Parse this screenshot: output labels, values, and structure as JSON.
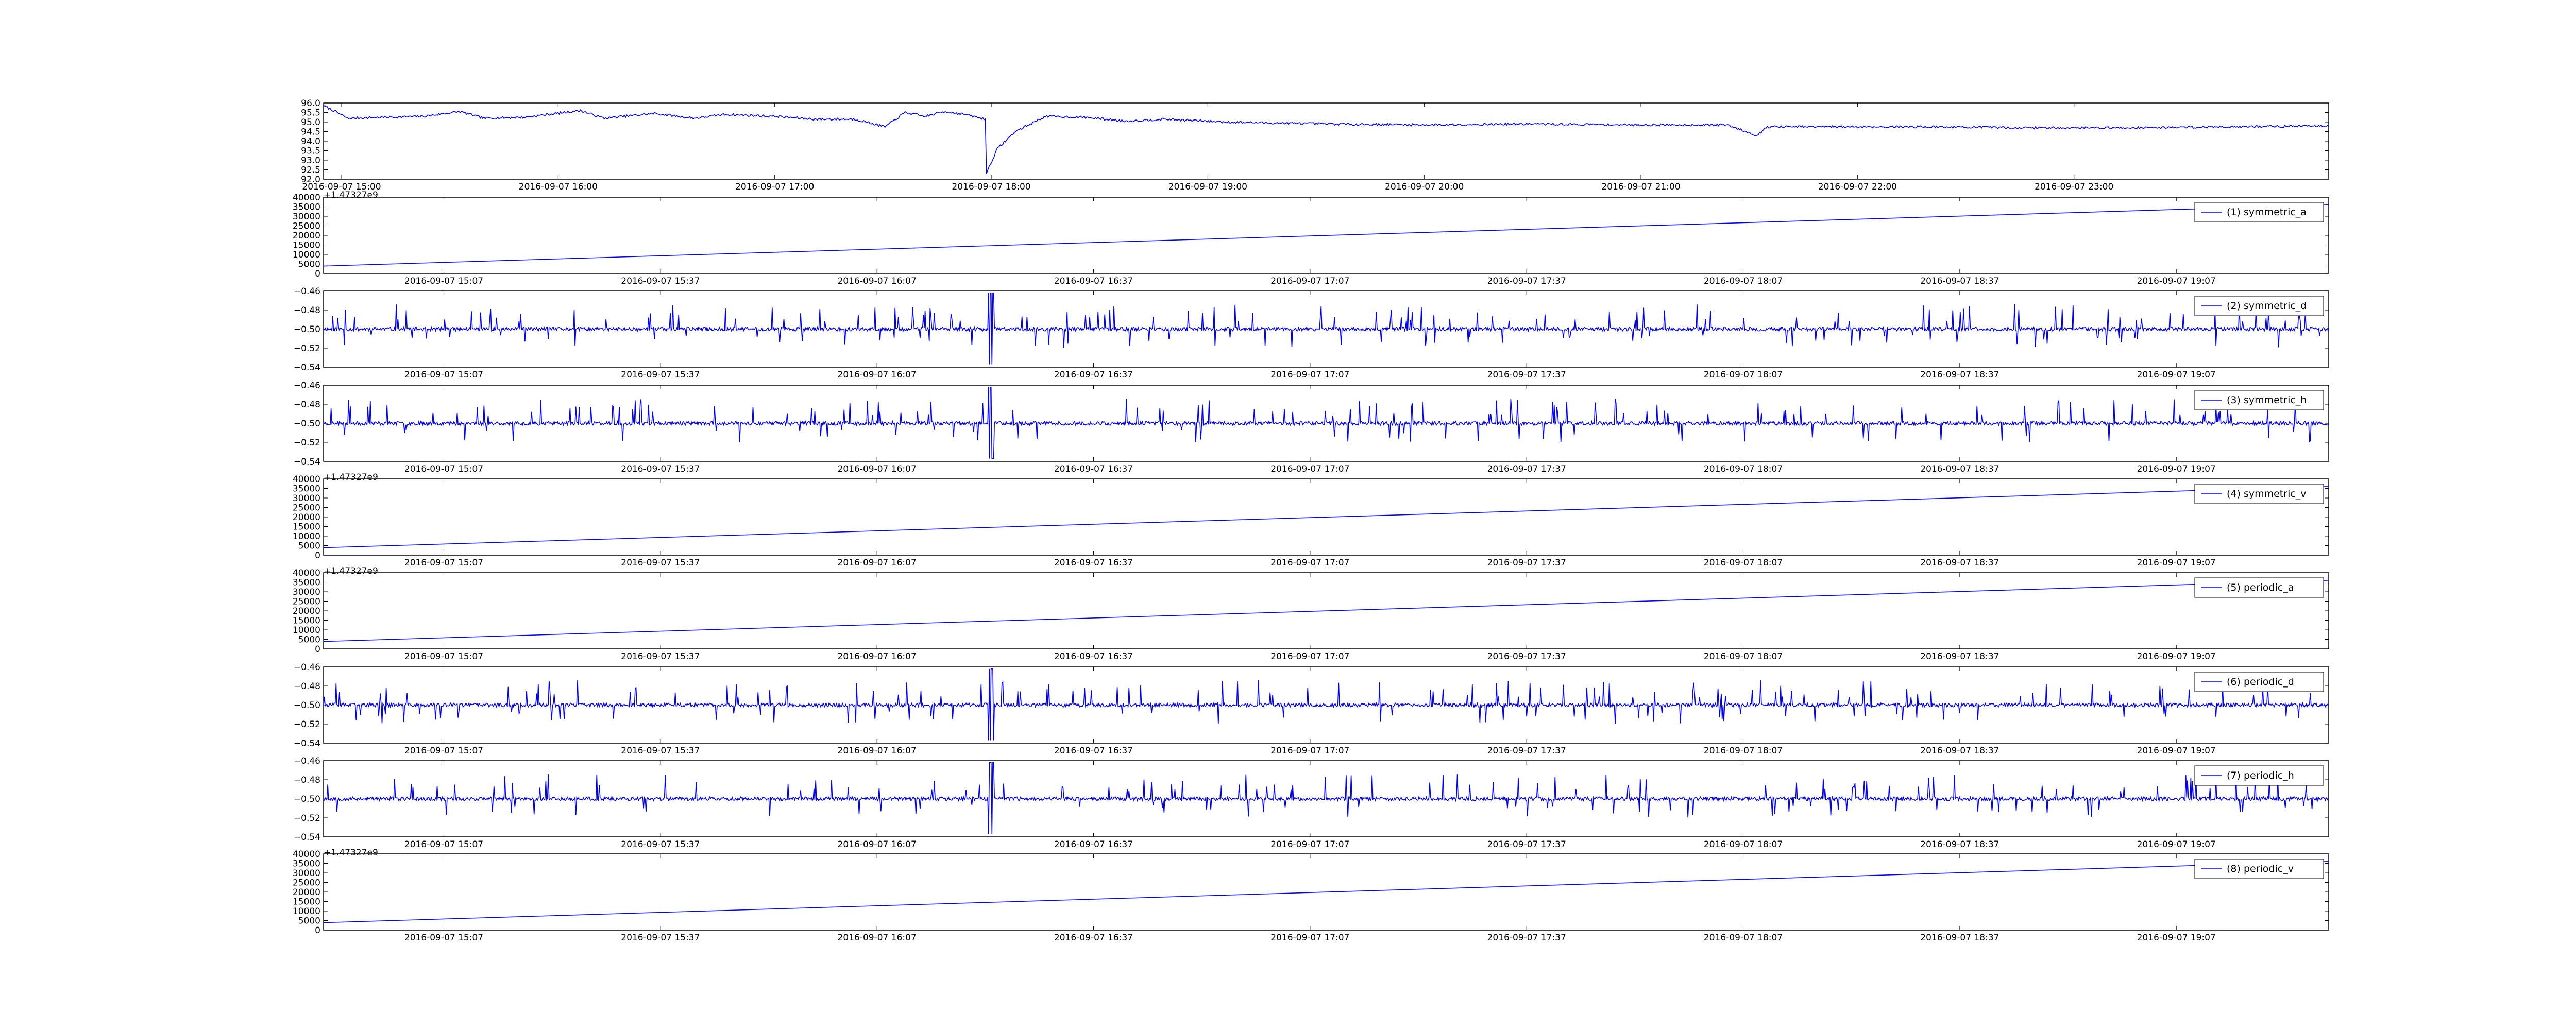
{
  "figure": {
    "background": "#ffffff",
    "line_color": "#0000ff"
  },
  "chart_data": [
    {
      "type": "line",
      "ylim": [
        92.0,
        96.0
      ],
      "yticks": [
        "96.0",
        "95.5",
        "95.0",
        "94.5",
        "94.0",
        "93.5",
        "93.0",
        "92.5",
        "92.0"
      ],
      "xticks": [
        "2016-09-07 15:00",
        "2016-09-07 16:00",
        "2016-09-07 17:00",
        "2016-09-07 18:00",
        "2016-09-07 19:00",
        "2016-09-07 20:00",
        "2016-09-07 21:00",
        "2016-09-07 22:00",
        "2016-09-07 23:00"
      ],
      "x_range": [
        "2016-09-07 14:56",
        "2016-09-08 00:12"
      ],
      "offset_text": "+1.47327e9",
      "series": [
        {
          "values_sampled": [
            [
              0.0,
              95.85
            ],
            [
              0.005,
              95.6
            ],
            [
              0.012,
              95.2
            ],
            [
              0.03,
              95.25
            ],
            [
              0.05,
              95.3
            ],
            [
              0.068,
              95.55
            ],
            [
              0.08,
              95.2
            ],
            [
              0.1,
              95.25
            ],
            [
              0.128,
              95.6
            ],
            [
              0.14,
              95.2
            ],
            [
              0.165,
              95.45
            ],
            [
              0.185,
              95.2
            ],
            [
              0.2,
              95.4
            ],
            [
              0.225,
              95.3
            ],
            [
              0.245,
              95.15
            ],
            [
              0.265,
              95.15
            ],
            [
              0.28,
              94.75
            ],
            [
              0.29,
              95.5
            ],
            [
              0.3,
              95.3
            ],
            [
              0.31,
              95.55
            ],
            [
              0.32,
              95.4
            ],
            [
              0.33,
              95.15
            ],
            [
              0.3305,
              92.3
            ],
            [
              0.336,
              93.6
            ],
            [
              0.345,
              94.5
            ],
            [
              0.36,
              95.3
            ],
            [
              0.38,
              95.25
            ],
            [
              0.4,
              95.05
            ],
            [
              0.42,
              95.15
            ],
            [
              0.45,
              95.0
            ],
            [
              0.5,
              94.9
            ],
            [
              0.55,
              94.85
            ],
            [
              0.6,
              94.9
            ],
            [
              0.65,
              94.85
            ],
            [
              0.7,
              94.85
            ],
            [
              0.715,
              94.3
            ],
            [
              0.72,
              94.75
            ],
            [
              0.75,
              94.75
            ],
            [
              0.8,
              94.75
            ],
            [
              0.85,
              94.7
            ],
            [
              0.9,
              94.7
            ],
            [
              0.95,
              94.75
            ],
            [
              1.0,
              94.8
            ]
          ]
        }
      ]
    },
    {
      "type": "line",
      "ylim": [
        0,
        40000
      ],
      "yticks": [
        "40000",
        "35000",
        "30000",
        "25000",
        "20000",
        "15000",
        "10000",
        "5000",
        "0"
      ],
      "xticks": [
        "2016-09-07 15:07",
        "2016-09-07 15:37",
        "2016-09-07 16:07",
        "2016-09-07 16:37",
        "2016-09-07 17:07",
        "2016-09-07 17:37",
        "2016-09-07 18:07",
        "2016-09-07 18:37",
        "2016-09-07 19:07"
      ],
      "x_range": [
        "2016-09-07 14:51",
        "2016-09-07 19:28"
      ],
      "offset_text": "",
      "legend": "(1) symmetric_a",
      "series": [
        {
          "kind": "linear",
          "y_start": 3900,
          "y_end": 36000
        }
      ]
    },
    {
      "type": "line",
      "ylim": [
        -0.54,
        -0.46
      ],
      "yticks": [
        "−0.46",
        "−0.48",
        "−0.50",
        "−0.52",
        "−0.54"
      ],
      "xticks": [
        "2016-09-07 15:07",
        "2016-09-07 15:37",
        "2016-09-07 16:07",
        "2016-09-07 16:37",
        "2016-09-07 17:07",
        "2016-09-07 17:37",
        "2016-09-07 18:07",
        "2016-09-07 18:37",
        "2016-09-07 19:07"
      ],
      "x_range": [
        "2016-09-07 14:51",
        "2016-09-07 19:28"
      ],
      "offset_text": "",
      "legend": "(2) symmetric_d",
      "series": [
        {
          "kind": "noise",
          "baseline": -0.5,
          "seed": 11
        }
      ]
    },
    {
      "type": "line",
      "ylim": [
        -0.54,
        -0.46
      ],
      "yticks": [
        "−0.46",
        "−0.48",
        "−0.50",
        "−0.52",
        "−0.54"
      ],
      "xticks": [
        "2016-09-07 15:07",
        "2016-09-07 15:37",
        "2016-09-07 16:07",
        "2016-09-07 16:37",
        "2016-09-07 17:07",
        "2016-09-07 17:37",
        "2016-09-07 18:07",
        "2016-09-07 18:37",
        "2016-09-07 19:07"
      ],
      "x_range": [
        "2016-09-07 14:51",
        "2016-09-07 19:28"
      ],
      "offset_text": "+1.47327e9",
      "legend": "(3) symmetric_h",
      "series": [
        {
          "kind": "noise",
          "baseline": -0.5,
          "seed": 23
        }
      ]
    },
    {
      "type": "line",
      "ylim": [
        0,
        40000
      ],
      "yticks": [
        "40000",
        "35000",
        "30000",
        "25000",
        "20000",
        "15000",
        "10000",
        "5000",
        "0"
      ],
      "xticks": [
        "2016-09-07 15:07",
        "2016-09-07 15:37",
        "2016-09-07 16:07",
        "2016-09-07 16:37",
        "2016-09-07 17:07",
        "2016-09-07 17:37",
        "2016-09-07 18:07",
        "2016-09-07 18:37",
        "2016-09-07 19:07"
      ],
      "x_range": [
        "2016-09-07 14:51",
        "2016-09-07 19:28"
      ],
      "offset_text": "+1.47327e9",
      "legend": "(4) symmetric_v",
      "series": [
        {
          "kind": "linear",
          "y_start": 3900,
          "y_end": 36000
        }
      ]
    },
    {
      "type": "line",
      "ylim": [
        0,
        40000
      ],
      "yticks": [
        "40000",
        "35000",
        "30000",
        "25000",
        "20000",
        "15000",
        "10000",
        "5000",
        "0"
      ],
      "xticks": [
        "2016-09-07 15:07",
        "2016-09-07 15:37",
        "2016-09-07 16:07",
        "2016-09-07 16:37",
        "2016-09-07 17:07",
        "2016-09-07 17:37",
        "2016-09-07 18:07",
        "2016-09-07 18:37",
        "2016-09-07 19:07"
      ],
      "x_range": [
        "2016-09-07 14:51",
        "2016-09-07 19:28"
      ],
      "offset_text": "",
      "legend": "(5) periodic_a",
      "series": [
        {
          "kind": "linear",
          "y_start": 3900,
          "y_end": 36000
        }
      ]
    },
    {
      "type": "line",
      "ylim": [
        -0.54,
        -0.46
      ],
      "yticks": [
        "−0.46",
        "−0.48",
        "−0.50",
        "−0.52",
        "−0.54"
      ],
      "xticks": [
        "2016-09-07 15:07",
        "2016-09-07 15:37",
        "2016-09-07 16:07",
        "2016-09-07 16:37",
        "2016-09-07 17:07",
        "2016-09-07 17:37",
        "2016-09-07 18:07",
        "2016-09-07 18:37",
        "2016-09-07 19:07"
      ],
      "x_range": [
        "2016-09-07 14:51",
        "2016-09-07 19:28"
      ],
      "offset_text": "",
      "legend": "(6) periodic_d",
      "series": [
        {
          "kind": "noise",
          "baseline": -0.5,
          "seed": 37
        }
      ]
    },
    {
      "type": "line",
      "ylim": [
        -0.54,
        -0.46
      ],
      "yticks": [
        "−0.46",
        "−0.48",
        "−0.50",
        "−0.52",
        "−0.54"
      ],
      "xticks": [
        "2016-09-07 15:07",
        "2016-09-07 15:37",
        "2016-09-07 16:07",
        "2016-09-07 16:37",
        "2016-09-07 17:07",
        "2016-09-07 17:37",
        "2016-09-07 18:07",
        "2016-09-07 18:37",
        "2016-09-07 19:07"
      ],
      "x_range": [
        "2016-09-07 14:51",
        "2016-09-07 19:28"
      ],
      "offset_text": "+1.47327e9",
      "legend": "(7) periodic_h",
      "series": [
        {
          "kind": "noise",
          "baseline": -0.5,
          "seed": 53
        }
      ]
    },
    {
      "type": "line",
      "ylim": [
        0,
        40000
      ],
      "yticks": [
        "40000",
        "35000",
        "30000",
        "25000",
        "20000",
        "15000",
        "10000",
        "5000",
        "0"
      ],
      "xticks": [
        "2016-09-07 15:07",
        "2016-09-07 15:37",
        "2016-09-07 16:07",
        "2016-09-07 16:37",
        "2016-09-07 17:07",
        "2016-09-07 17:37",
        "2016-09-07 18:07",
        "2016-09-07 18:37",
        "2016-09-07 19:07"
      ],
      "x_range": [
        "2016-09-07 14:51",
        "2016-09-07 19:28"
      ],
      "offset_text": "",
      "legend": "(8) periodic_v",
      "series": [
        {
          "kind": "linear",
          "y_start": 3900,
          "y_end": 36000
        }
      ]
    }
  ]
}
